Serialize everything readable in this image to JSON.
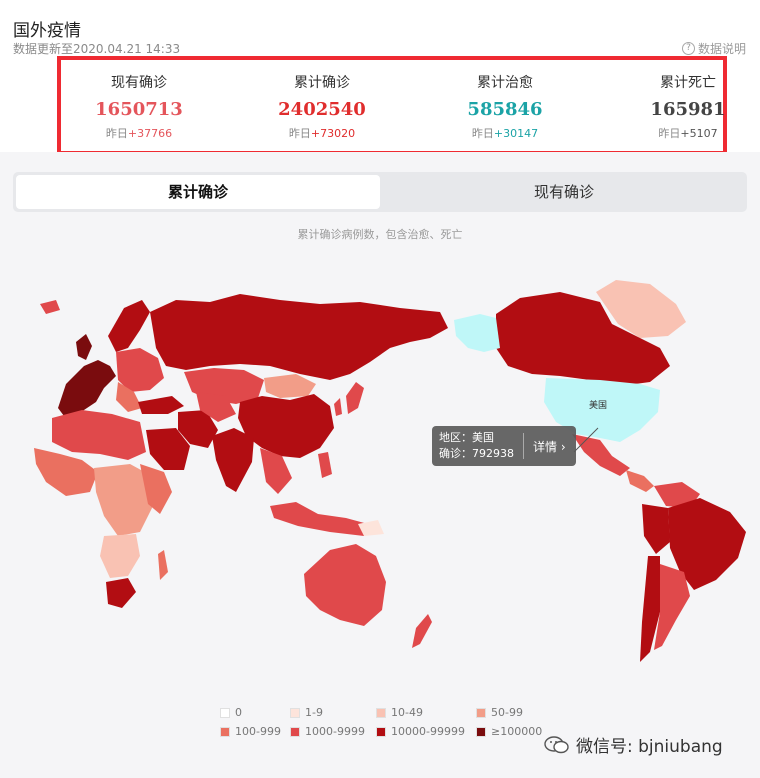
{
  "header": {
    "title": "国外疫情",
    "updated": "数据更新至2020.04.21 14:33",
    "explain": "数据说明"
  },
  "stats": [
    {
      "label": "现有确诊",
      "value": "1650713",
      "delta_label": "昨日",
      "delta": "+37766",
      "color": "#e4555b"
    },
    {
      "label": "累计确诊",
      "value": "2402540",
      "delta_label": "昨日",
      "delta": "+73020",
      "color": "#e02d2d"
    },
    {
      "label": "累计治愈",
      "value": "585846",
      "delta_label": "昨日",
      "delta": "+30147",
      "color": "#1ba3a6"
    },
    {
      "label": "累计死亡",
      "value": "165981",
      "delta_label": "昨日",
      "delta": "+5107",
      "color": "#444444"
    }
  ],
  "tabs": [
    {
      "label": "累计确诊",
      "active": true
    },
    {
      "label": "现有确诊",
      "active": false
    }
  ],
  "caption": "累计确诊病例数，包含治愈、死亡",
  "map": {
    "highlight_label": "美国",
    "highlight_color": "#bff7f8",
    "colors": {
      "ge100000": "#7a0c0e",
      "c10000": "#b20d12",
      "c1000": "#e0494b",
      "c100": "#ea7060",
      "c50": "#f29d88",
      "c10": "#f9c2b3",
      "c1": "#fde4db",
      "c0": "#ffffff"
    }
  },
  "tooltip": {
    "region_label": "地区：美国",
    "count_label": "确诊：792938",
    "detail": "详情 ›"
  },
  "legend": [
    {
      "label": "0",
      "color": "#ffffff"
    },
    {
      "label": "1-9",
      "color": "#fde4db"
    },
    {
      "label": "10-49",
      "color": "#f9c2b3"
    },
    {
      "label": "50-99",
      "color": "#f29d88"
    },
    {
      "label": "100-999",
      "color": "#ea7060"
    },
    {
      "label": "1000-9999",
      "color": "#e0494b"
    },
    {
      "label": "10000-99999",
      "color": "#b20d12"
    },
    {
      "label": "≥100000",
      "color": "#7a0c0e"
    }
  ],
  "watermark": "微信号: bjniubang"
}
